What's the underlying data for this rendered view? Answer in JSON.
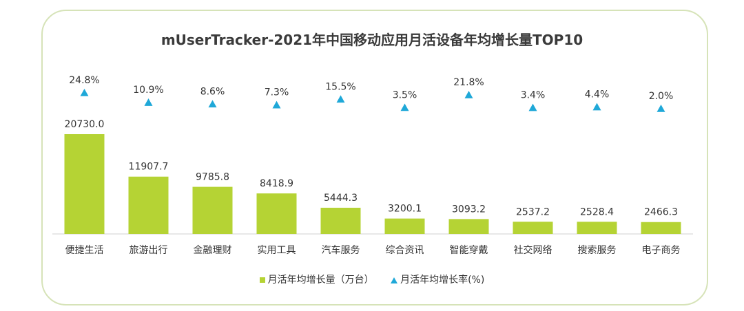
{
  "chart_data": {
    "type": "bar",
    "title": "mUserTracker-2021年中国移动应用月活设备年均增长量TOP10",
    "categories": [
      "便捷生活",
      "旅游出行",
      "金融理财",
      "实用工具",
      "汽车服务",
      "综合资讯",
      "智能穿戴",
      "社交网络",
      "搜索服务",
      "电子商务"
    ],
    "series": [
      {
        "name": "月活年均增长量（万台）",
        "type": "bar",
        "values": [
          20730.0,
          11907.7,
          9785.8,
          8418.9,
          5444.3,
          3200.1,
          3093.2,
          2537.2,
          2528.4,
          2466.3
        ],
        "labels": [
          "20730.0",
          "11907.7",
          "9785.8",
          "8418.9",
          "5444.3",
          "3200.1",
          "3093.2",
          "2537.2",
          "2528.4",
          "2466.3"
        ],
        "color": "#b5d334"
      },
      {
        "name": "月活年均增长率(%)",
        "type": "scatter",
        "marker": "triangle",
        "values": [
          24.8,
          10.9,
          8.6,
          7.3,
          15.5,
          3.5,
          21.8,
          3.4,
          4.4,
          2.0
        ],
        "labels": [
          "24.8%",
          "10.9%",
          "8.6%",
          "7.3%",
          "15.5%",
          "3.5%",
          "21.8%",
          "3.4%",
          "4.4%",
          "2.0%"
        ],
        "color": "#1fa8d8"
      }
    ],
    "legend_position": "bottom"
  },
  "legend": {
    "bar_label": "月活年均增长量（万台）",
    "rate_label": "月活年均增长率(%)"
  }
}
